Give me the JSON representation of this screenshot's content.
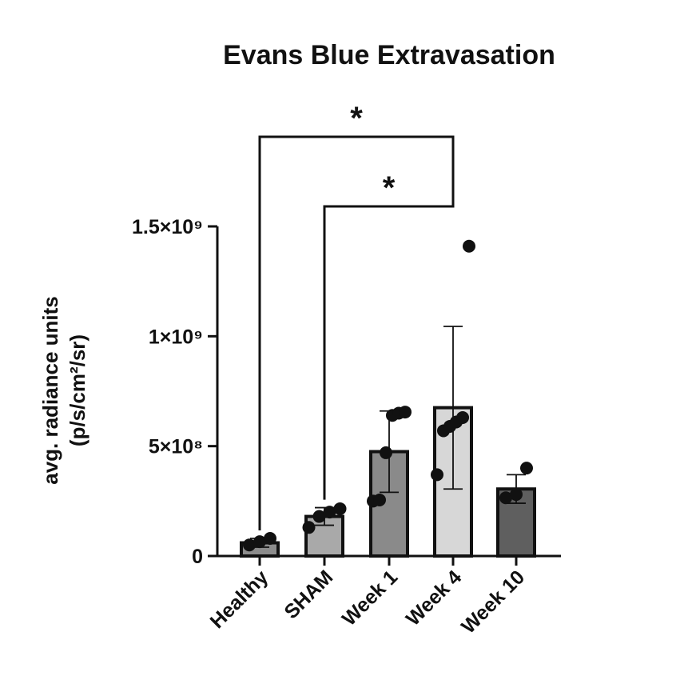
{
  "chart_data": {
    "type": "bar",
    "title": "Evans Blue Extravasation",
    "ylabel_line1": "avg. radiance units",
    "ylabel_line2": "(p/s/cm²/sr)",
    "xlabel": "",
    "ylim": [
      0,
      1500000000
    ],
    "yticks": [
      {
        "value": 0,
        "label": "0"
      },
      {
        "value": 500000000,
        "label": "5×10⁸"
      },
      {
        "value": 1000000000,
        "label": "1×10⁹"
      },
      {
        "value": 1500000000,
        "label": "1.5×10⁹"
      }
    ],
    "categories": [
      "Healthy",
      "SHAM",
      "Week 1",
      "Week 4",
      "Week 10"
    ],
    "values": [
      60000000,
      180000000,
      475000000,
      675000000,
      305000000
    ],
    "error": [
      20000000,
      40000000,
      185000000,
      370000000,
      65000000
    ],
    "points": [
      [
        50000000,
        65000000,
        80000000
      ],
      [
        130000000,
        180000000,
        200000000,
        215000000
      ],
      [
        250000000,
        255000000,
        470000000,
        640000000,
        650000000,
        655000000
      ],
      [
        370000000,
        570000000,
        590000000,
        610000000,
        630000000,
        1410000000
      ],
      [
        265000000,
        280000000,
        400000000
      ]
    ],
    "bar_colors": [
      "#8c8c8c",
      "#a9a9a9",
      "#8a8a8a",
      "#d7d7d7",
      "#5f5f5f"
    ],
    "grid": false,
    "significance": [
      {
        "from": "Healthy",
        "to": "Week 4",
        "label": "*"
      },
      {
        "from": "SHAM",
        "to": "Week 4",
        "label": "*"
      }
    ]
  }
}
